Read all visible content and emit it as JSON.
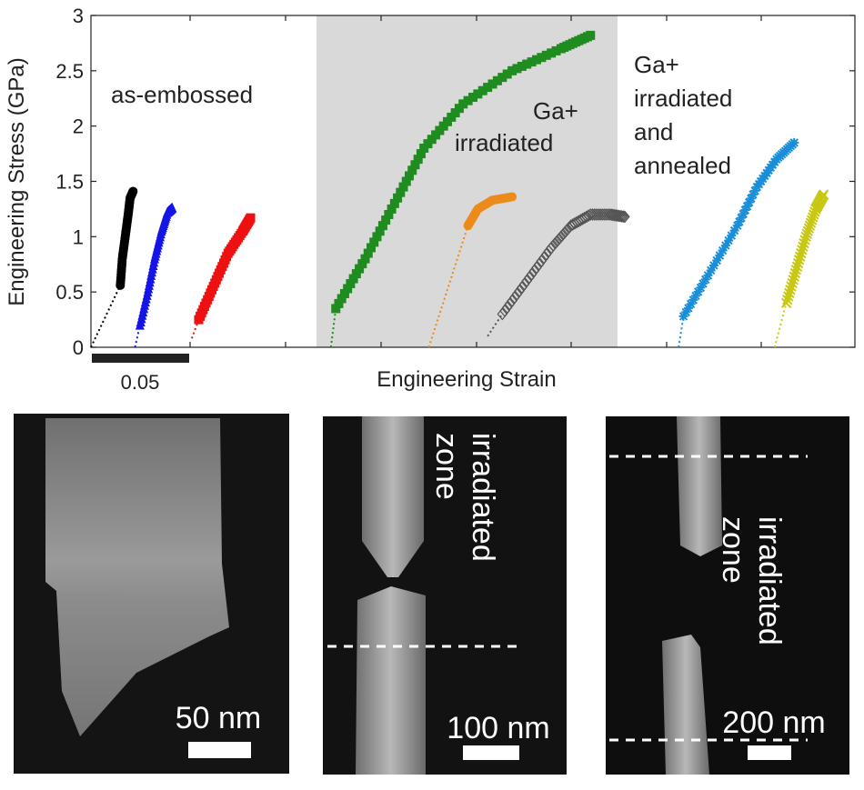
{
  "chart_data": {
    "type": "scatter",
    "ylabel": "Engineering Stress (GPa)",
    "xlabel": "Engineering Strain",
    "ylim": [
      0,
      3
    ],
    "y_ticks": [
      "0",
      "0.5",
      "1",
      "1.5",
      "2",
      "2.5",
      "3"
    ],
    "x_ticks_shown": false,
    "grid": false,
    "strain_scale_bar": "0.05",
    "shaded_region_color": "#d9d9d9",
    "annotations": {
      "as_embossed": "as-embossed",
      "ga_irradiated": [
        "Ga+",
        "irradiated"
      ],
      "ga_annealed": [
        "Ga+",
        "irradiated",
        "and",
        "annealed"
      ]
    },
    "series": [
      {
        "group": "as-embossed",
        "marker": "circle",
        "color": "#000000",
        "points": [
          [
            0.0,
            0.0
          ],
          [
            0.03,
            0.56
          ],
          [
            0.032,
            0.8
          ],
          [
            0.035,
            1.0
          ],
          [
            0.038,
            1.2
          ],
          [
            0.04,
            1.35
          ],
          [
            0.043,
            1.41
          ]
        ]
      },
      {
        "group": "as-embossed",
        "marker": "triangle",
        "color": "#1414e6",
        "points": [
          [
            0.045,
            0.0
          ],
          [
            0.05,
            0.2
          ],
          [
            0.058,
            0.5
          ],
          [
            0.065,
            0.8
          ],
          [
            0.072,
            1.05
          ],
          [
            0.078,
            1.22
          ],
          [
            0.083,
            1.26
          ]
        ]
      },
      {
        "group": "as-embossed",
        "marker": "square",
        "color": "#ee1111",
        "points": [
          [
            0.103,
            0.08
          ],
          [
            0.11,
            0.25
          ],
          [
            0.125,
            0.55
          ],
          [
            0.14,
            0.85
          ],
          [
            0.155,
            1.05
          ],
          [
            0.163,
            1.17
          ]
        ]
      },
      {
        "group": "Ga+ irradiated",
        "marker": "square",
        "color": "#1e8c1e",
        "points": [
          [
            0.245,
            0.0
          ],
          [
            0.25,
            0.35
          ],
          [
            0.28,
            0.8
          ],
          [
            0.31,
            1.3
          ],
          [
            0.34,
            1.8
          ],
          [
            0.38,
            2.2
          ],
          [
            0.43,
            2.5
          ],
          [
            0.48,
            2.7
          ],
          [
            0.51,
            2.82
          ]
        ]
      },
      {
        "group": "Ga+ irradiated",
        "marker": "circle",
        "color": "#ec8a1a",
        "points": [
          [
            0.345,
            0.0
          ],
          [
            0.385,
            1.1
          ],
          [
            0.395,
            1.25
          ],
          [
            0.41,
            1.33
          ],
          [
            0.43,
            1.36
          ]
        ]
      },
      {
        "group": "Ga+ irradiated",
        "marker": "diamond",
        "color": "#555555",
        "points": [
          [
            0.405,
            0.1
          ],
          [
            0.42,
            0.3
          ],
          [
            0.445,
            0.6
          ],
          [
            0.47,
            0.9
          ],
          [
            0.49,
            1.1
          ],
          [
            0.51,
            1.2
          ],
          [
            0.53,
            1.2
          ],
          [
            0.545,
            1.18
          ]
        ]
      },
      {
        "group": "Ga+ irradiated and annealed",
        "marker": "star",
        "color": "#1a8ed8",
        "points": [
          [
            0.6,
            0.0
          ],
          [
            0.605,
            0.28
          ],
          [
            0.63,
            0.65
          ],
          [
            0.66,
            1.1
          ],
          [
            0.68,
            1.45
          ],
          [
            0.7,
            1.7
          ],
          [
            0.718,
            1.85
          ]
        ]
      },
      {
        "group": "Ga+ irradiated and annealed",
        "marker": "cross",
        "color": "#c8c814",
        "points": [
          [
            0.698,
            0.0
          ],
          [
            0.71,
            0.4
          ],
          [
            0.72,
            0.7
          ],
          [
            0.73,
            1.0
          ],
          [
            0.74,
            1.25
          ],
          [
            0.748,
            1.38
          ]
        ]
      }
    ]
  },
  "sem_panels": [
    {
      "scale_text": "50 nm",
      "zone_label": []
    },
    {
      "scale_text": "100 nm",
      "zone_label": [
        "irradiated",
        "zone"
      ]
    },
    {
      "scale_text": "200 nm",
      "zone_label": [
        "irradiated",
        "zone"
      ]
    }
  ]
}
